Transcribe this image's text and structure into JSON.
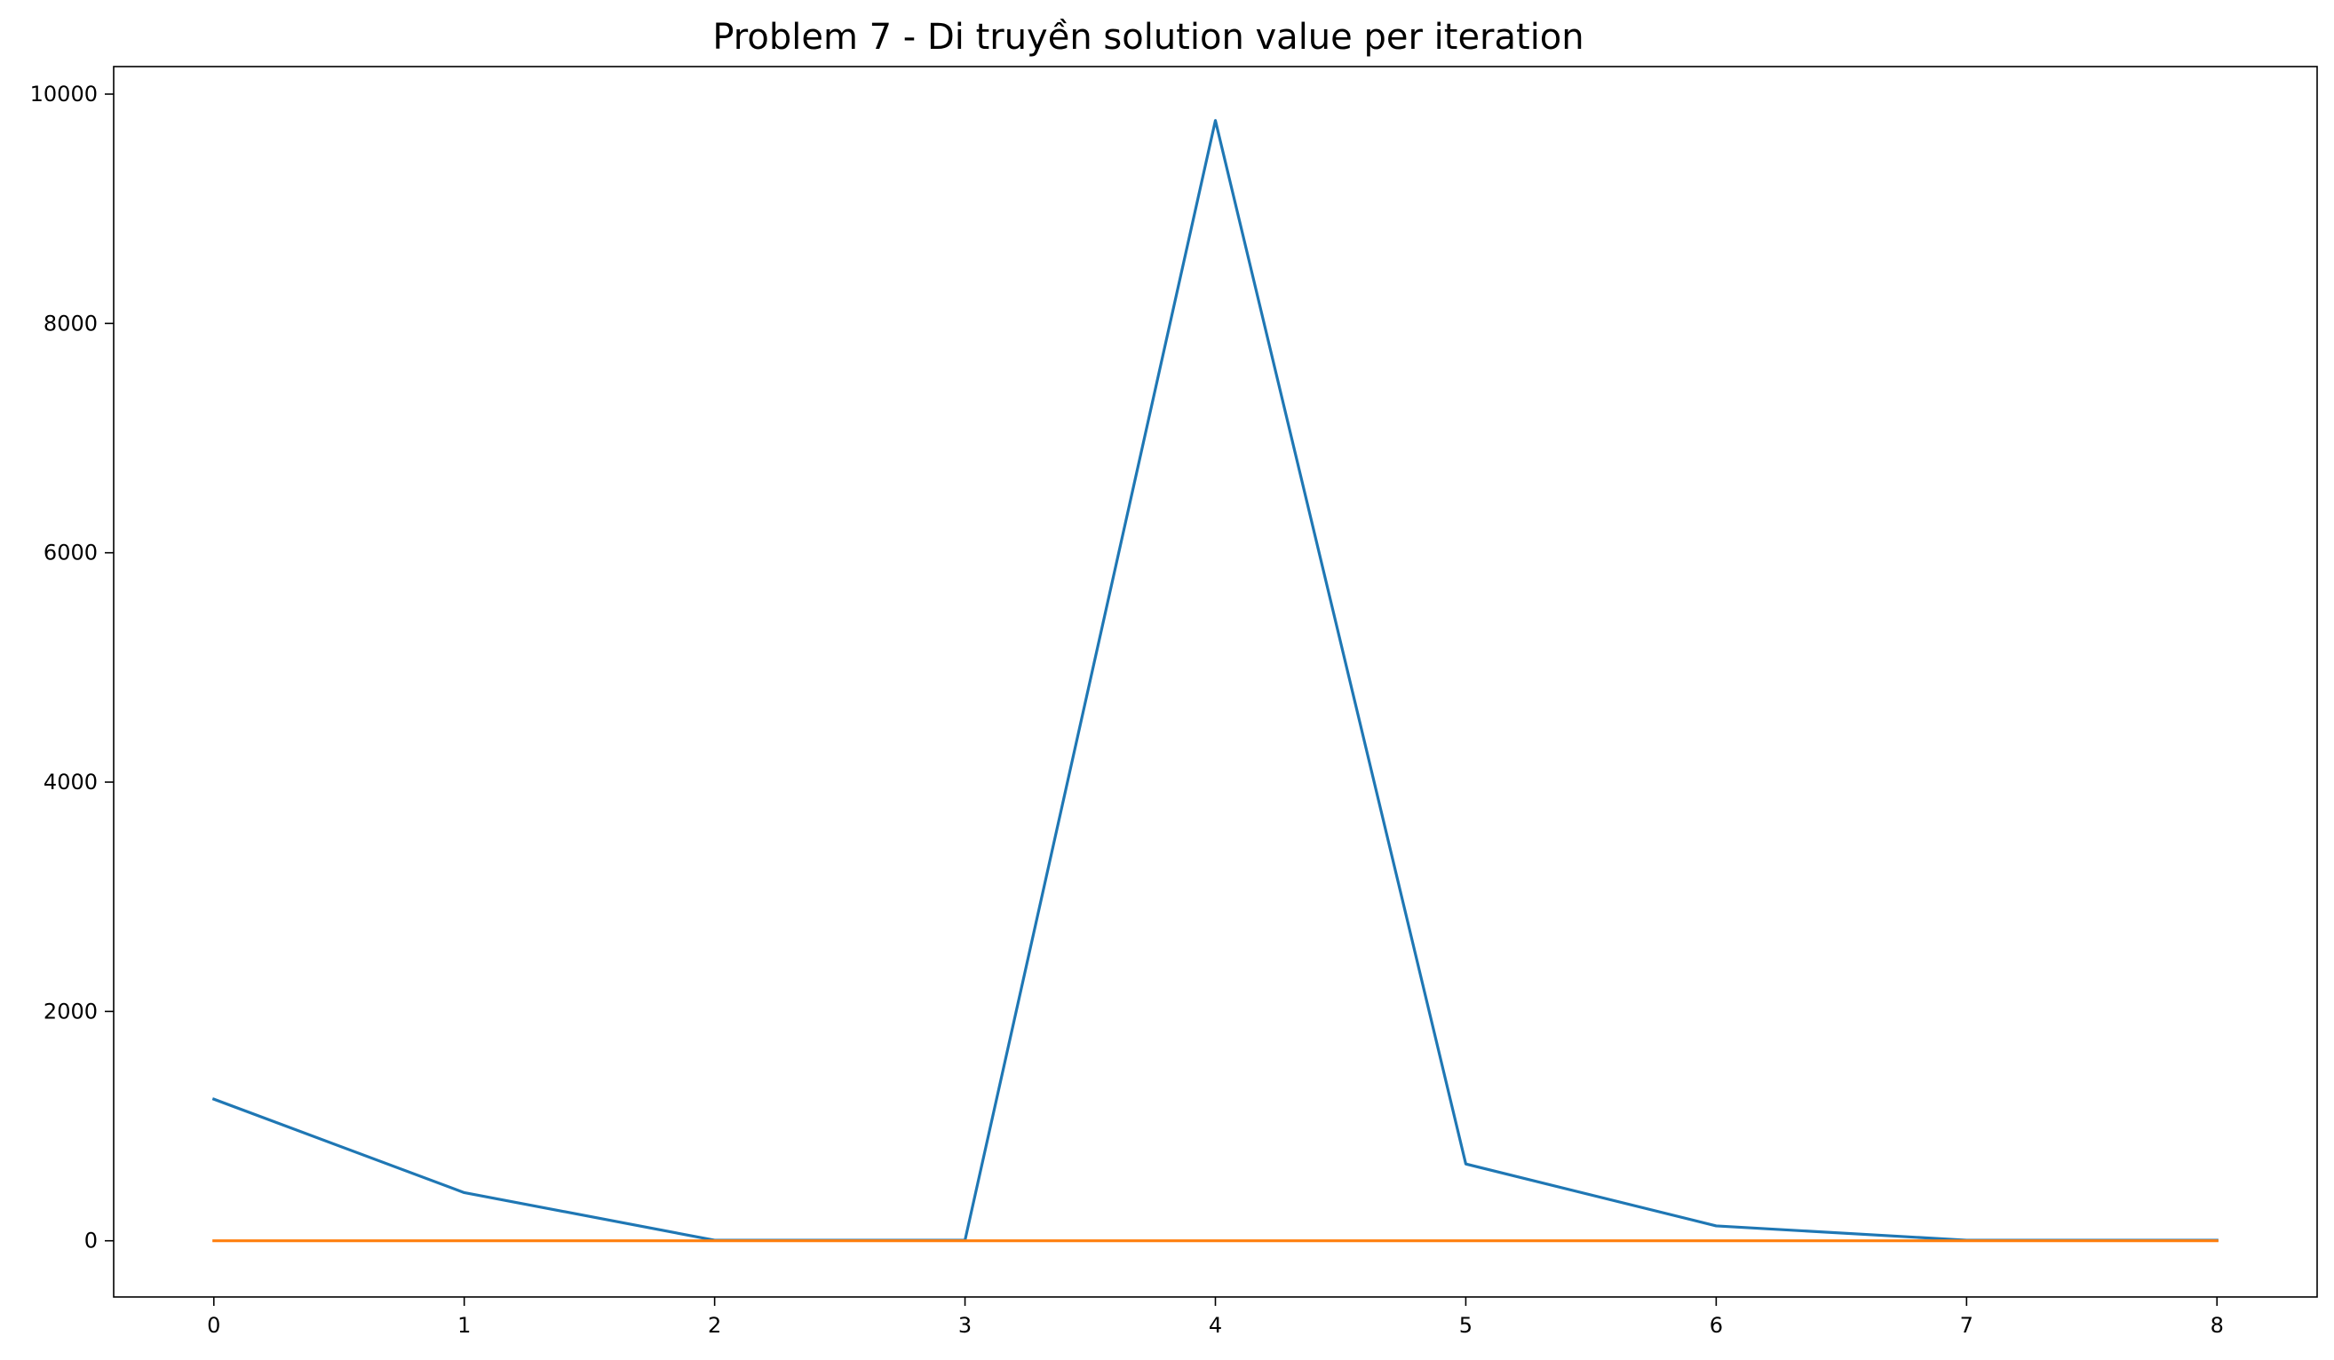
{
  "chart_data": {
    "type": "line",
    "title": "Problem 7 - Di truyền solution value per iteration",
    "xlabel": "",
    "ylabel": "",
    "x": [
      0,
      1,
      2,
      3,
      4,
      5,
      6,
      7,
      8
    ],
    "x_ticks": [
      "0",
      "1",
      "2",
      "3",
      "4",
      "5",
      "6",
      "7",
      "8"
    ],
    "y_ticks": [
      "0",
      "2000",
      "4000",
      "6000",
      "8000",
      "10000"
    ],
    "xlim": [
      -0.4,
      8.4
    ],
    "ylim": [
      -490,
      10240
    ],
    "grid": false,
    "series": [
      {
        "color": "#1f77b4",
        "values": [
          1235,
          420,
          5,
          5,
          9770,
          670,
          130,
          5,
          5
        ]
      },
      {
        "color": "#ff7f0e",
        "values": [
          0,
          0,
          0,
          0,
          0,
          0,
          0,
          0,
          0
        ]
      }
    ]
  }
}
